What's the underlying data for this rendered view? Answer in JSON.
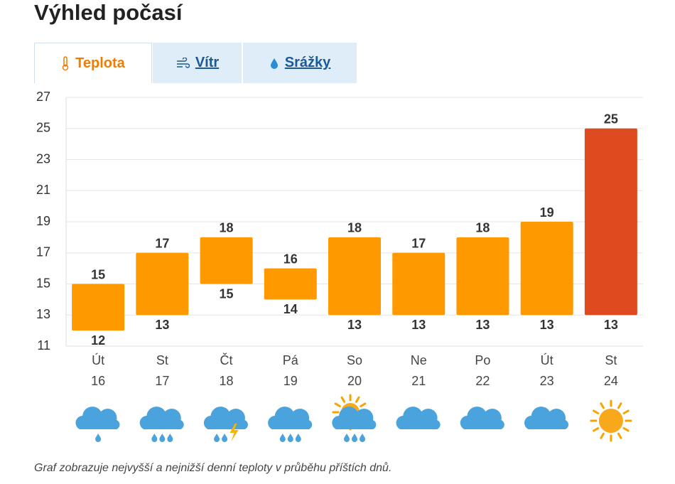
{
  "title": "Výhled počasí",
  "tabs": [
    "Teplota",
    "Vítr",
    "Srážky"
  ],
  "chart_data": {
    "type": "range-bar",
    "categories": [
      "Út",
      "St",
      "Čt",
      "Pá",
      "So",
      "Ne",
      "Po",
      "Út",
      "St"
    ],
    "dates": [
      "16",
      "17",
      "18",
      "19",
      "20",
      "21",
      "22",
      "23",
      "24"
    ],
    "high": [
      15,
      17,
      18,
      16,
      18,
      17,
      18,
      19,
      25
    ],
    "low": [
      12,
      13,
      15,
      14,
      13,
      13,
      13,
      13,
      13
    ],
    "colors": [
      "#ff9900",
      "#ff9900",
      "#ff9900",
      "#ff9900",
      "#ff9900",
      "#ff9900",
      "#ff9900",
      "#ff9900",
      "#e04a1f"
    ],
    "ylim": [
      11,
      27
    ],
    "yticks": [
      11,
      13,
      15,
      17,
      19,
      21,
      23,
      25,
      27
    ],
    "grid": true
  },
  "caption": "Graf zobrazuje nejvyšší a nejnižší denní teploty v průběhu příštích dnů."
}
